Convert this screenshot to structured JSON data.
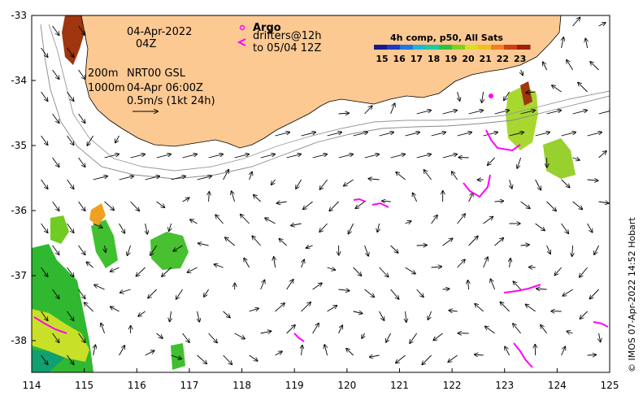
{
  "map": {
    "date_line": "04-Apr-2022",
    "time_line": "04Z",
    "depth_label_1": "200m",
    "depth_label_2": "1000m",
    "product_line": "NRT00 GSL",
    "product_time": "04-Apr 06:00Z",
    "scale_label": "0.5m/s (1kt 24h)",
    "argo_label": "Argo",
    "drifters_line1": "drifters@12h",
    "drifters_line2": "to 05/04 12Z",
    "credit": "© IMOS 07-Apr-2022 14:52 Hobart"
  },
  "colorbar": {
    "title": "4h comp, p50, All Sats",
    "ticks": [
      "15",
      "16",
      "17",
      "18",
      "19",
      "20",
      "21",
      "22",
      "23"
    ]
  },
  "axes": {
    "x_ticks": [
      "114",
      "115",
      "116",
      "117",
      "118",
      "119",
      "120",
      "121",
      "122",
      "123",
      "124",
      "125"
    ],
    "y_ticks": [
      "-33",
      "-34",
      "-35",
      "-36",
      "-37",
      "-38"
    ]
  },
  "colors": {
    "land": "#fcc993",
    "drifter": "#ff00ff",
    "sst_warm": "#a0360f",
    "sst_mid": "#40c020",
    "sst_cool": "#c0e020"
  }
}
